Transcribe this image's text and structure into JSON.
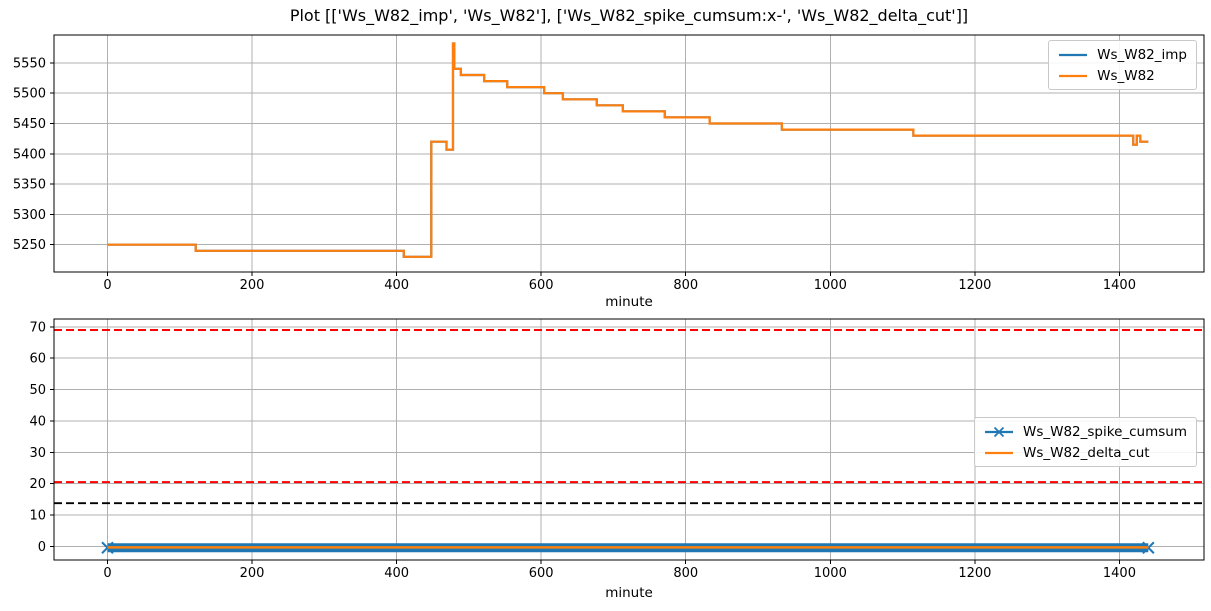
{
  "figure": {
    "title": "Plot [['Ws_W82_imp', 'Ws_W82'], ['Ws_W82_spike_cumsum:x-', 'Ws_W82_delta_cut']]",
    "background": "#ffffff"
  },
  "palette": {
    "series_blue": "#1f77b4",
    "series_orange": "#ff7f0e",
    "threshold_red": "#ff0000",
    "threshold_black": "#000000",
    "grid": "#b0b0b0",
    "spine": "#000000",
    "text": "#000000"
  },
  "chart_data": [
    {
      "type": "line",
      "title": "",
      "xlabel": "minute",
      "ylabel": "",
      "xlim": [
        -74,
        1517
      ],
      "ylim": [
        5205,
        5596
      ],
      "xticks": [
        0,
        200,
        400,
        600,
        800,
        1000,
        1200,
        1400
      ],
      "yticks": [
        5250,
        5300,
        5350,
        5400,
        5450,
        5500,
        5550
      ],
      "grid": true,
      "legend": {
        "position": "upper right",
        "entries": [
          "Ws_W82_imp",
          "Ws_W82"
        ]
      },
      "series": [
        {
          "name": "Ws_W82_imp",
          "color": "#1f77b4",
          "marker": "",
          "width": 2.2,
          "points": [
            [
              0,
              5250
            ],
            [
              122,
              5250
            ],
            [
              122,
              5240
            ],
            [
              410,
              5240
            ],
            [
              410,
              5230
            ],
            [
              448,
              5230
            ],
            [
              448,
              5420
            ],
            [
              469,
              5420
            ],
            [
              469,
              5407
            ],
            [
              478,
              5407
            ],
            [
              478,
              5582
            ],
            [
              480,
              5582
            ],
            [
              480,
              5540
            ],
            [
              489,
              5540
            ],
            [
              489,
              5530
            ],
            [
              521,
              5530
            ],
            [
              521,
              5520
            ],
            [
              553,
              5520
            ],
            [
              553,
              5510
            ],
            [
              604,
              5510
            ],
            [
              604,
              5500
            ],
            [
              630,
              5500
            ],
            [
              630,
              5490
            ],
            [
              677,
              5490
            ],
            [
              677,
              5480
            ],
            [
              713,
              5480
            ],
            [
              713,
              5470
            ],
            [
              771,
              5470
            ],
            [
              771,
              5460
            ],
            [
              833,
              5460
            ],
            [
              833,
              5450
            ],
            [
              933,
              5450
            ],
            [
              933,
              5440
            ],
            [
              1115,
              5440
            ],
            [
              1115,
              5430
            ],
            [
              1419,
              5430
            ],
            [
              1419,
              5415
            ],
            [
              1424,
              5415
            ],
            [
              1424,
              5430
            ],
            [
              1429,
              5430
            ],
            [
              1429,
              5420
            ],
            [
              1440,
              5420
            ]
          ]
        },
        {
          "name": "Ws_W82",
          "color": "#ff7f0e",
          "marker": "",
          "width": 2.2,
          "points": [
            [
              0,
              5250
            ],
            [
              122,
              5250
            ],
            [
              122,
              5240
            ],
            [
              410,
              5240
            ],
            [
              410,
              5230
            ],
            [
              448,
              5230
            ],
            [
              448,
              5420
            ],
            [
              469,
              5420
            ],
            [
              469,
              5407
            ],
            [
              478,
              5407
            ],
            [
              478,
              5582
            ],
            [
              480,
              5582
            ],
            [
              480,
              5540
            ],
            [
              489,
              5540
            ],
            [
              489,
              5530
            ],
            [
              521,
              5530
            ],
            [
              521,
              5520
            ],
            [
              553,
              5520
            ],
            [
              553,
              5510
            ],
            [
              604,
              5510
            ],
            [
              604,
              5500
            ],
            [
              630,
              5500
            ],
            [
              630,
              5490
            ],
            [
              677,
              5490
            ],
            [
              677,
              5480
            ],
            [
              713,
              5480
            ],
            [
              713,
              5470
            ],
            [
              771,
              5470
            ],
            [
              771,
              5460
            ],
            [
              833,
              5460
            ],
            [
              833,
              5450
            ],
            [
              933,
              5450
            ],
            [
              933,
              5440
            ],
            [
              1115,
              5440
            ],
            [
              1115,
              5430
            ],
            [
              1419,
              5430
            ],
            [
              1419,
              5415
            ],
            [
              1424,
              5415
            ],
            [
              1424,
              5430
            ],
            [
              1429,
              5430
            ],
            [
              1429,
              5420
            ],
            [
              1440,
              5420
            ]
          ]
        }
      ],
      "hlines": []
    },
    {
      "type": "line",
      "title": "",
      "xlabel": "minute",
      "ylabel": "",
      "xlim": [
        -74,
        1517
      ],
      "ylim": [
        -4.3,
        72.5
      ],
      "xticks": [
        0,
        200,
        400,
        600,
        800,
        1000,
        1200,
        1400
      ],
      "yticks": [
        0,
        10,
        20,
        30,
        40,
        50,
        60,
        70
      ],
      "grid": true,
      "legend": {
        "position": "center right",
        "entries": [
          "Ws_W82_spike_cumsum",
          "Ws_W82_delta_cut"
        ]
      },
      "series": [
        {
          "name": "Ws_W82_spike_cumsum",
          "color": "#1f77b4",
          "marker": "x",
          "width": 9,
          "points": [
            [
              0,
              -0.4
            ],
            [
              1440,
              -0.4
            ]
          ]
        },
        {
          "name": "Ws_W82_delta_cut",
          "color": "#ff7f0e",
          "marker": "",
          "width": 2.5,
          "points": [
            [
              0,
              -0.3
            ],
            [
              1440,
              -0.3
            ]
          ]
        }
      ],
      "hlines": [
        {
          "y": 69,
          "color": "#ff0000",
          "width": 2,
          "dash": "8 4"
        },
        {
          "y": 20.5,
          "color": "#ff0000",
          "width": 2,
          "dash": "8 4"
        },
        {
          "y": 13.8,
          "color": "#000000",
          "width": 1.8,
          "dash": "8 4"
        }
      ]
    }
  ]
}
